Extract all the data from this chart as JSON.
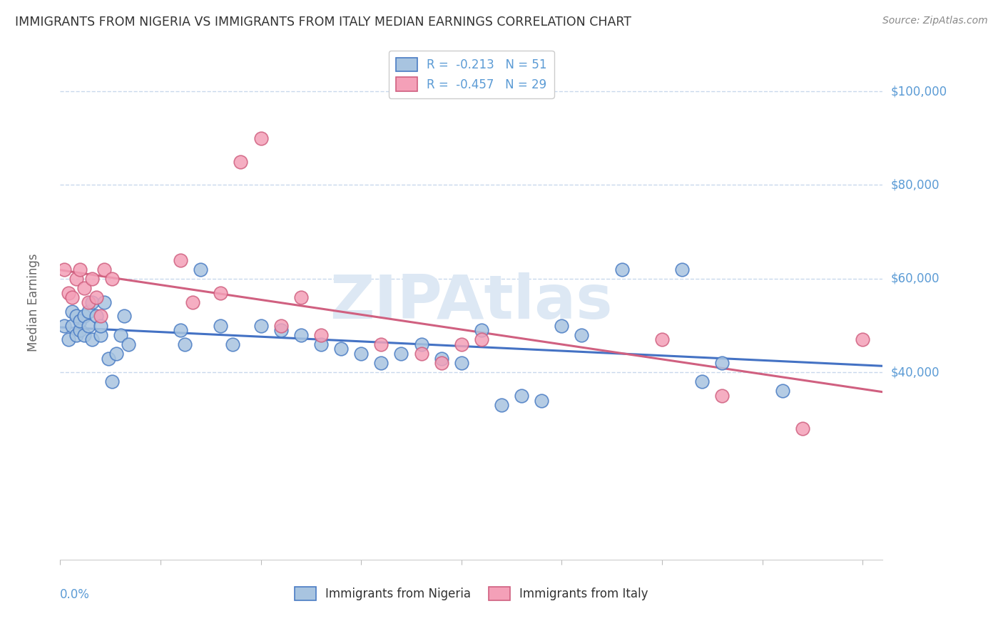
{
  "title": "IMMIGRANTS FROM NIGERIA VS IMMIGRANTS FROM ITALY MEDIAN EARNINGS CORRELATION CHART",
  "source": "Source: ZipAtlas.com",
  "ylabel": "Median Earnings",
  "watermark": "ZIPAtlas",
  "nigeria_R": -0.213,
  "nigeria_N": 51,
  "italy_R": -0.457,
  "italy_N": 29,
  "nigeria_color": "#a8c4e0",
  "nigeria_edge_color": "#4a7cc4",
  "nigeria_line_color": "#4472c4",
  "italy_color": "#f4a0b8",
  "italy_edge_color": "#d06080",
  "italy_line_color": "#d06080",
  "axis_label_color": "#5b9bd5",
  "grid_color": "#c8d8ec",
  "text_color": "#333333",
  "background_color": "#ffffff",
  "ylim": [
    0,
    110000
  ],
  "xlim": [
    0.0,
    0.205
  ],
  "ytick_vals": [
    40000,
    60000,
    80000,
    100000
  ],
  "ytick_labels": [
    "$40,000",
    "$60,000",
    "$80,000",
    "$100,000"
  ],
  "nigeria_x": [
    0.001,
    0.002,
    0.003,
    0.003,
    0.004,
    0.004,
    0.005,
    0.005,
    0.006,
    0.006,
    0.007,
    0.007,
    0.008,
    0.008,
    0.009,
    0.01,
    0.01,
    0.011,
    0.012,
    0.013,
    0.014,
    0.015,
    0.016,
    0.017,
    0.03,
    0.031,
    0.035,
    0.04,
    0.043,
    0.05,
    0.055,
    0.06,
    0.065,
    0.07,
    0.075,
    0.08,
    0.085,
    0.09,
    0.095,
    0.1,
    0.105,
    0.11,
    0.115,
    0.12,
    0.125,
    0.13,
    0.14,
    0.155,
    0.16,
    0.165,
    0.18
  ],
  "nigeria_y": [
    50000,
    47000,
    50000,
    53000,
    48000,
    52000,
    49000,
    51000,
    52000,
    48000,
    50000,
    53000,
    47000,
    55000,
    52000,
    48000,
    50000,
    55000,
    43000,
    38000,
    44000,
    48000,
    52000,
    46000,
    49000,
    46000,
    62000,
    50000,
    46000,
    50000,
    49000,
    48000,
    46000,
    45000,
    44000,
    42000,
    44000,
    46000,
    43000,
    42000,
    49000,
    33000,
    35000,
    34000,
    50000,
    48000,
    62000,
    62000,
    38000,
    42000,
    36000
  ],
  "italy_x": [
    0.001,
    0.002,
    0.003,
    0.004,
    0.005,
    0.006,
    0.007,
    0.008,
    0.009,
    0.01,
    0.011,
    0.013,
    0.03,
    0.033,
    0.04,
    0.045,
    0.05,
    0.055,
    0.06,
    0.065,
    0.08,
    0.09,
    0.095,
    0.1,
    0.105,
    0.15,
    0.165,
    0.185,
    0.2
  ],
  "italy_y": [
    62000,
    57000,
    56000,
    60000,
    62000,
    58000,
    55000,
    60000,
    56000,
    52000,
    62000,
    60000,
    64000,
    55000,
    57000,
    85000,
    90000,
    50000,
    56000,
    48000,
    46000,
    44000,
    42000,
    46000,
    47000,
    47000,
    35000,
    28000,
    47000
  ]
}
